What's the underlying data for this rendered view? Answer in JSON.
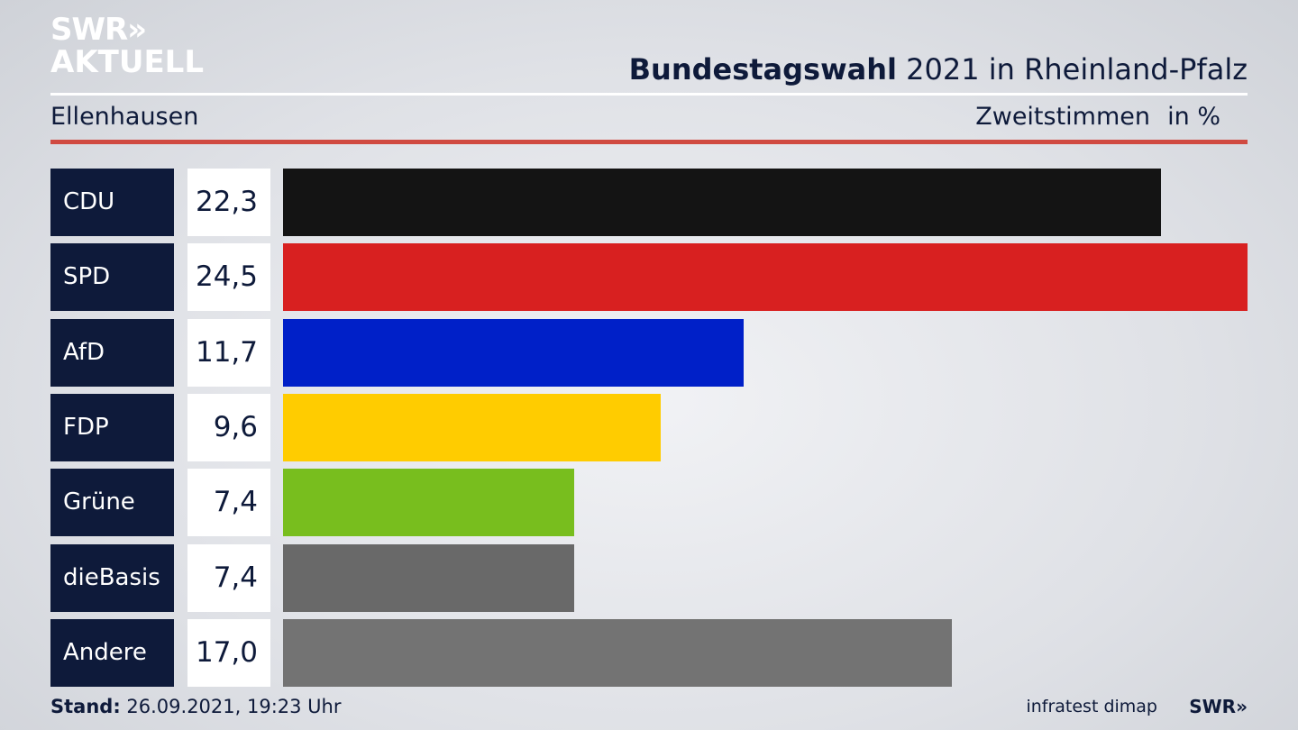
{
  "header": {
    "logo_line1": "SWR»",
    "logo_line2": "AKTUELL",
    "title_bold": "Bundestagswahl",
    "title_rest": " 2021 in Rheinland-Pfalz",
    "subtitle": "Ellenhausen",
    "mode": "Zweitstimmen",
    "unit": "in %"
  },
  "chart_data": {
    "type": "bar",
    "orientation": "horizontal",
    "categories": [
      "CDU",
      "SPD",
      "AfD",
      "FDP",
      "Grüne",
      "dieBasis",
      "Andere"
    ],
    "values": [
      22.3,
      24.5,
      11.7,
      9.6,
      7.4,
      7.4,
      17.0
    ],
    "value_labels": [
      "22,3",
      "24,5",
      "11,7",
      "9,6",
      "7,4",
      "7,4",
      "17,0"
    ],
    "colors": [
      "#141414",
      "#d82020",
      "#0020c8",
      "#ffcc00",
      "#78be1e",
      "#696969",
      "#737373"
    ],
    "xlim": [
      0,
      24.5
    ]
  },
  "footer": {
    "stand_label": "Stand:",
    "stand_value": " 26.09.2021, 19:23 Uhr",
    "source": "infratest dimap",
    "logo_small": "SWR»"
  }
}
